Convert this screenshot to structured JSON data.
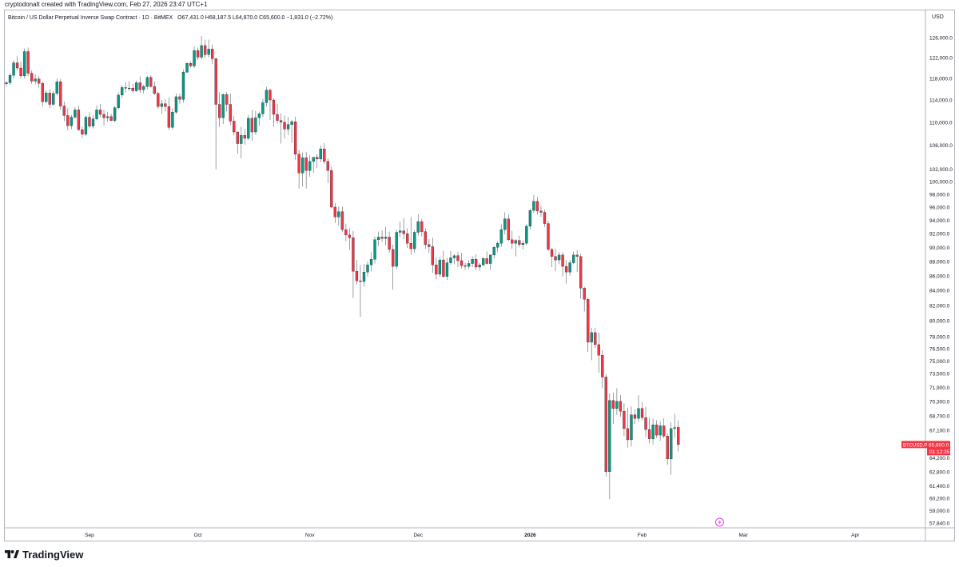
{
  "header": {
    "attribution": "cryptodonalt created with TradingView.com, Feb 27, 2026 23:47 UTC+1"
  },
  "chart_data": {
    "type": "candlestick",
    "title": "Bitcoin / US Dollar Perpetual Inverse Swap Contract · 1D · BitMEX",
    "ohlc_line": "O67,431.0 H68,187.5 L64,870.0 C65,600.0 −1,831.0 (−2.72%)",
    "currency": "USD",
    "price_tag": {
      "symbol": "BTCUSD.P",
      "price": "65,600.0",
      "countdown": "01:12:35",
      "value": 65600
    },
    "x_labels": [
      {
        "label": "Sep",
        "index": 23,
        "bold": false
      },
      {
        "label": "Oct",
        "index": 53,
        "bold": false
      },
      {
        "label": "Nov",
        "index": 84,
        "bold": false
      },
      {
        "label": "Dec",
        "index": 114,
        "bold": false
      },
      {
        "label": "2026",
        "index": 145,
        "bold": true
      },
      {
        "label": "Feb",
        "index": 176,
        "bold": false
      },
      {
        "label": "Mar",
        "index": 204,
        "bold": false
      },
      {
        "label": "Apr",
        "index": 235,
        "bold": false
      }
    ],
    "y_ticks": [
      126000,
      122000,
      118000,
      114000,
      110000,
      106000,
      102000,
      100000,
      98000,
      96000,
      94000,
      92000,
      90000,
      88000,
      86000,
      84000,
      82000,
      80000,
      78000,
      76500,
      75000,
      73500,
      71900,
      70300,
      68700,
      67100,
      65600,
      64200,
      62800,
      61400,
      60200,
      59000,
      57840
    ],
    "y_tick_labels": [
      "126,000.0",
      "122,000.0",
      "118,000.0",
      "114,000.0",
      "110,000.0",
      "106,000.0",
      "102,000.0",
      "100,000.0",
      "98,000.0",
      "96,000.0",
      "94,000.0",
      "92,000.0",
      "90,000.0",
      "88,000.0",
      "86,000.0",
      "84,000.0",
      "82,000.0",
      "80,000.0",
      "78,000.0",
      "76,500.0",
      "75,000.0",
      "73,500.0",
      "71,900.0",
      "70,300.0",
      "68,700.0",
      "67,100.0",
      "65,600.0",
      "64,200.0",
      "62,800.0",
      "61,400.0",
      "60,200.0",
      "59,000.0",
      "57,840.0"
    ],
    "scale": "log",
    "up_color": "#089981",
    "down_color": "#f23645",
    "candles": [
      [
        117000,
        117500,
        116500,
        117200
      ],
      [
        117200,
        119000,
        116800,
        118600
      ],
      [
        118600,
        121500,
        118000,
        121000
      ],
      [
        121000,
        122300,
        119500,
        120000
      ],
      [
        120000,
        121200,
        118000,
        118500
      ],
      [
        118500,
        123800,
        118000,
        123200
      ],
      [
        123200,
        124000,
        118500,
        119000
      ],
      [
        119000,
        119500,
        117000,
        117500
      ],
      [
        117500,
        118800,
        116900,
        117900
      ],
      [
        117900,
        118500,
        116300,
        117100
      ],
      [
        117100,
        117400,
        112800,
        113700
      ],
      [
        113700,
        115800,
        113400,
        115300
      ],
      [
        115300,
        116000,
        112500,
        113200
      ],
      [
        113200,
        115600,
        113000,
        115200
      ],
      [
        115200,
        118000,
        114800,
        117400
      ],
      [
        117400,
        117900,
        112200,
        112900
      ],
      [
        112900,
        113700,
        110200,
        111200
      ],
      [
        111200,
        112500,
        108600,
        109400
      ],
      [
        109400,
        111300,
        108800,
        110900
      ],
      [
        110900,
        112700,
        110600,
        112200
      ],
      [
        112200,
        113000,
        108500,
        108700
      ],
      [
        108700,
        109200,
        107300,
        107900
      ],
      [
        107900,
        111200,
        107600,
        110900
      ],
      [
        110900,
        111800,
        108900,
        109300
      ],
      [
        109300,
        111300,
        108900,
        110600
      ],
      [
        110600,
        113000,
        110400,
        112200
      ],
      [
        112200,
        113300,
        110900,
        111400
      ],
      [
        111400,
        112200,
        109400,
        110800
      ],
      [
        110800,
        111800,
        110100,
        111000
      ],
      [
        111000,
        111500,
        110200,
        110300
      ],
      [
        110300,
        112900,
        110000,
        112600
      ],
      [
        112600,
        115400,
        112300,
        114900
      ],
      [
        114900,
        116700,
        114400,
        116300
      ],
      [
        116300,
        117300,
        115400,
        116200
      ],
      [
        116200,
        117500,
        115700,
        116200
      ],
      [
        116200,
        117000,
        115300,
        115700
      ],
      [
        115700,
        117600,
        115500,
        117200
      ],
      [
        117200,
        118400,
        115300,
        115900
      ],
      [
        115900,
        116800,
        115200,
        116500
      ],
      [
        116500,
        118500,
        116000,
        118200
      ],
      [
        118200,
        118600,
        116300,
        116500
      ],
      [
        116500,
        117400,
        114900,
        115200
      ],
      [
        115200,
        115500,
        112400,
        112800
      ],
      [
        112800,
        114000,
        111500,
        113300
      ],
      [
        113300,
        114100,
        111900,
        112800
      ],
      [
        112800,
        114400,
        108600,
        109100
      ],
      [
        109100,
        112500,
        108700,
        111800
      ],
      [
        111800,
        115200,
        111500,
        114600
      ],
      [
        114600,
        115200,
        113300,
        114100
      ],
      [
        114100,
        119700,
        113500,
        119200
      ],
      [
        119200,
        121100,
        119000,
        120900
      ],
      [
        120900,
        121300,
        120100,
        120400
      ],
      [
        120400,
        124200,
        120000,
        123400
      ],
      [
        123400,
        124000,
        121600,
        122100
      ],
      [
        122100,
        126300,
        121700,
        124400
      ],
      [
        124400,
        125600,
        121900,
        122600
      ],
      [
        122600,
        125600,
        122000,
        123700
      ],
      [
        123700,
        124600,
        120800,
        121800
      ],
      [
        121800,
        122000,
        102000,
        113200
      ],
      [
        113200,
        115400,
        109200,
        110800
      ],
      [
        110800,
        115200,
        109700,
        115000
      ],
      [
        115000,
        115500,
        111900,
        113200
      ],
      [
        113200,
        115200,
        109500,
        110200
      ],
      [
        110200,
        111100,
        107700,
        108300
      ],
      [
        108300,
        108400,
        104600,
        106300
      ],
      [
        106300,
        109200,
        103800,
        107700
      ],
      [
        107700,
        108800,
        106100,
        107200
      ],
      [
        107200,
        111300,
        106900,
        110700
      ],
      [
        110700,
        112200,
        106800,
        108300
      ],
      [
        108300,
        112000,
        107800,
        110800
      ],
      [
        110800,
        111900,
        109400,
        111500
      ],
      [
        111500,
        114200,
        110900,
        113500
      ],
      [
        113500,
        116400,
        112800,
        115800
      ],
      [
        115800,
        116100,
        110400,
        114000
      ],
      [
        114000,
        114300,
        109200,
        111400
      ],
      [
        111400,
        113300,
        109800,
        110300
      ],
      [
        110300,
        111600,
        106300,
        110000
      ],
      [
        110000,
        111200,
        107200,
        108800
      ],
      [
        108800,
        110900,
        107800,
        109600
      ],
      [
        109600,
        110400,
        106400,
        110100
      ],
      [
        110100,
        111000,
        103600,
        104500
      ],
      [
        104500,
        105200,
        98900,
        101400
      ],
      [
        101400,
        104800,
        99200,
        103900
      ],
      [
        103900,
        104900,
        98900,
        101800
      ],
      [
        101800,
        104300,
        100800,
        103300
      ],
      [
        103300,
        104000,
        101400,
        104000
      ],
      [
        104000,
        104500,
        102200,
        103700
      ],
      [
        103700,
        106000,
        103200,
        105400
      ],
      [
        105400,
        106400,
        102900,
        103300
      ],
      [
        103300,
        103800,
        99800,
        101800
      ],
      [
        101800,
        102400,
        95800,
        96000
      ],
      [
        96000,
        96600,
        93600,
        94500
      ],
      [
        94500,
        96100,
        93200,
        95300
      ],
      [
        95300,
        96100,
        92200,
        92600
      ],
      [
        92600,
        93500,
        90900,
        91800
      ],
      [
        91800,
        92800,
        89600,
        91400
      ],
      [
        91400,
        92400,
        83000,
        86600
      ],
      [
        86600,
        88200,
        84800,
        85300
      ],
      [
        85300,
        87500,
        80500,
        85200
      ],
      [
        85200,
        87600,
        84500,
        86500
      ],
      [
        86500,
        88000,
        85900,
        87500
      ],
      [
        87500,
        89300,
        86600,
        88300
      ],
      [
        88300,
        91600,
        87700,
        91100
      ],
      [
        91100,
        92300,
        90200,
        91500
      ],
      [
        91500,
        92500,
        90800,
        91300
      ],
      [
        91300,
        93000,
        90300,
        91500
      ],
      [
        91500,
        92300,
        89200,
        89700
      ],
      [
        89700,
        90400,
        84100,
        87300
      ],
      [
        87300,
        92600,
        86900,
        92200
      ],
      [
        92200,
        93800,
        91500,
        92400
      ],
      [
        92400,
        94300,
        91200,
        92000
      ],
      [
        92000,
        92800,
        89900,
        90600
      ],
      [
        90600,
        94500,
        88900,
        89800
      ],
      [
        89800,
        92500,
        89200,
        92200
      ],
      [
        92200,
        94900,
        91700,
        93800
      ],
      [
        93800,
        94200,
        91600,
        92300
      ],
      [
        92300,
        92800,
        89800,
        90400
      ],
      [
        90400,
        91200,
        89200,
        90100
      ],
      [
        90100,
        91400,
        86400,
        87500
      ],
      [
        87500,
        88600,
        85500,
        86200
      ],
      [
        86200,
        88600,
        85800,
        88200
      ],
      [
        88200,
        89500,
        85700,
        85900
      ],
      [
        85900,
        88500,
        85400,
        87800
      ],
      [
        87800,
        89500,
        87500,
        88500
      ],
      [
        88500,
        89000,
        87600,
        88800
      ],
      [
        88800,
        89300,
        87200,
        88100
      ],
      [
        88100,
        89200,
        87000,
        87400
      ],
      [
        87400,
        87800,
        86800,
        87300
      ],
      [
        87300,
        88200,
        86900,
        87700
      ],
      [
        87700,
        88700,
        87200,
        88300
      ],
      [
        88300,
        89000,
        86800,
        87200
      ],
      [
        87200,
        87800,
        86700,
        87500
      ],
      [
        87500,
        88600,
        87300,
        88400
      ],
      [
        88400,
        89400,
        87600,
        87700
      ],
      [
        87700,
        89000,
        86800,
        88900
      ],
      [
        88900,
        90200,
        88400,
        90000
      ],
      [
        90000,
        90900,
        89300,
        90600
      ],
      [
        90600,
        93400,
        90100,
        92600
      ],
      [
        92600,
        95200,
        91900,
        94200
      ],
      [
        94200,
        94900,
        90900,
        91100
      ],
      [
        91100,
        92400,
        89800,
        90600
      ],
      [
        90600,
        91200,
        88700,
        91000
      ],
      [
        91000,
        91700,
        90000,
        90400
      ],
      [
        90400,
        91000,
        89700,
        90600
      ],
      [
        90600,
        93400,
        90300,
        93100
      ],
      [
        93100,
        95700,
        92600,
        95500
      ],
      [
        95500,
        97900,
        95100,
        96900
      ],
      [
        96900,
        97600,
        94800,
        95400
      ],
      [
        95400,
        96200,
        94500,
        95200
      ],
      [
        95200,
        95600,
        93000,
        93500
      ],
      [
        93500,
        93900,
        89500,
        89700
      ],
      [
        89700,
        89900,
        87200,
        88700
      ],
      [
        88700,
        89800,
        86600,
        88200
      ],
      [
        88200,
        89300,
        87600,
        88900
      ],
      [
        88900,
        89300,
        85900,
        87300
      ],
      [
        87300,
        88200,
        84900,
        86500
      ],
      [
        86500,
        88200,
        86000,
        87800
      ],
      [
        87800,
        89400,
        87600,
        88900
      ],
      [
        88900,
        89600,
        86500,
        88700
      ],
      [
        88700,
        89100,
        82900,
        84300
      ],
      [
        84300,
        84500,
        81200,
        82800
      ],
      [
        82800,
        83000,
        76100,
        77300
      ],
      [
        77300,
        79100,
        75100,
        78500
      ],
      [
        78500,
        79100,
        76600,
        77000
      ],
      [
        77000,
        78500,
        73600,
        75700
      ],
      [
        75700,
        76300,
        71800,
        73100
      ],
      [
        73100,
        73400,
        62300,
        62800
      ],
      [
        62800,
        71200,
        60100,
        70400
      ],
      [
        70400,
        71300,
        67800,
        69500
      ],
      [
        69500,
        71800,
        68800,
        70300
      ],
      [
        70300,
        71000,
        68600,
        69200
      ],
      [
        69200,
        70100,
        66500,
        67300
      ],
      [
        67300,
        69600,
        65300,
        66100
      ],
      [
        66100,
        69700,
        65400,
        68800
      ],
      [
        68800,
        69400,
        67800,
        68400
      ],
      [
        68400,
        71000,
        68000,
        69500
      ],
      [
        69500,
        70200,
        68200,
        68500
      ],
      [
        68500,
        69700,
        66400,
        67200
      ],
      [
        67200,
        68500,
        65700,
        66200
      ],
      [
        66200,
        68400,
        65600,
        67700
      ],
      [
        67700,
        68200,
        66300,
        66600
      ],
      [
        66600,
        68100,
        66000,
        67600
      ],
      [
        67600,
        68400,
        66300,
        66500
      ],
      [
        66500,
        66800,
        63500,
        64100
      ],
      [
        64100,
        68000,
        62500,
        67300
      ],
      [
        67300,
        68900,
        66300,
        67400
      ],
      [
        67431,
        68187.5,
        64870,
        65600
      ]
    ]
  }
}
